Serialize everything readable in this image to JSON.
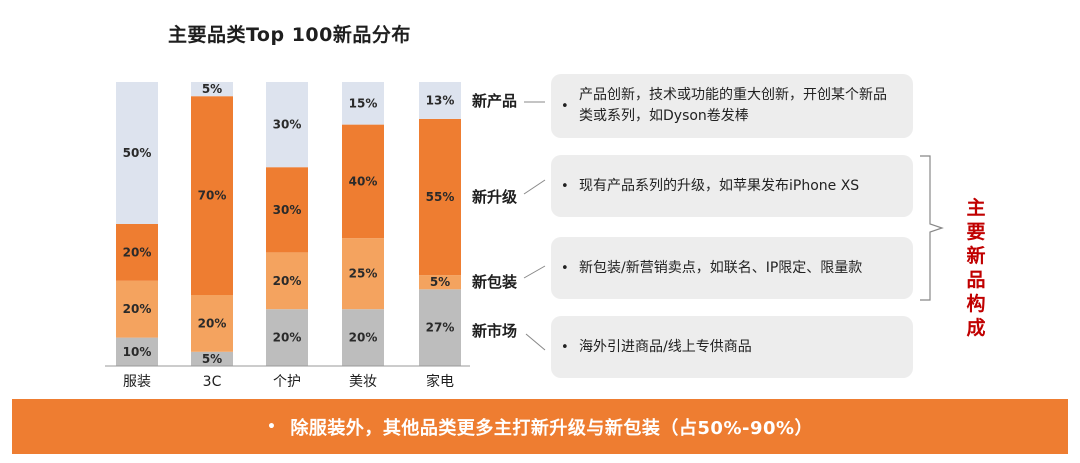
{
  "chart_data": {
    "type": "bar",
    "stacked": true,
    "normalized": true,
    "title": "主要品类Top 100新品分布",
    "categories": [
      "服装",
      "3C",
      "个护",
      "美妆",
      "家电"
    ],
    "stack_order_bottom_to_top": [
      "新市场",
      "新包装",
      "新升级",
      "新产品"
    ],
    "series": [
      {
        "values": [
          10,
          5,
          20,
          20,
          27
        ],
        "color": "#bdbdbd"
      },
      {
        "values": [
          20,
          20,
          20,
          25,
          5
        ],
        "color": "#f4a35f"
      },
      {
        "values": [
          20,
          70,
          30,
          40,
          55
        ],
        "color": "#ee7d31"
      },
      {
        "values": [
          50,
          5,
          30,
          15,
          13
        ],
        "color": "#dde3ee"
      }
    ],
    "value_labels": [
      [
        "10%",
        "20%",
        "20%",
        "50%"
      ],
      [
        "5%",
        "20%",
        "70%",
        "5%"
      ],
      [
        "20%",
        "20%",
        "30%",
        "30%"
      ],
      [
        "20%",
        "25%",
        "40%",
        "15%"
      ],
      [
        "27%",
        "5%",
        "55%",
        "13%"
      ]
    ],
    "ylim": [
      0,
      100
    ]
  },
  "rows": [
    {
      "label": "新产品",
      "description": "产品创新，技术或功能的重大创新，开创某个新品类或系列，如Dyson卷发棒"
    },
    {
      "label": "新升级",
      "description": "现有产品系列的升级，如苹果发布iPhone XS"
    },
    {
      "label": "新包装",
      "description": "新包装/新营销卖点，如联名、IP限定、限量款"
    },
    {
      "label": "新市场",
      "description": "海外引进商品/线上专供商品"
    }
  ],
  "bullet_char": "•",
  "summary_label": "主要新品构成",
  "banner_text": "除服装外，其他品类更多主打新升级与新包装（占50%-90%）",
  "colors": {
    "banner": "#ee7d31",
    "summary": "#c00000"
  }
}
